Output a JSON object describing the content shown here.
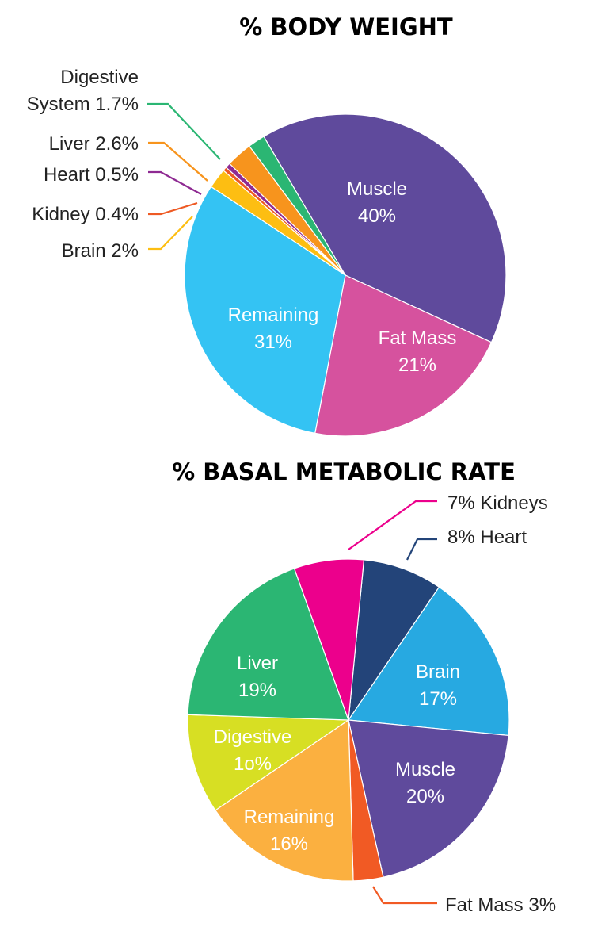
{
  "chart_data": [
    {
      "type": "pie",
      "title": "% BODY WEIGHT",
      "slices": [
        {
          "key": "muscle",
          "label_lines": [
            "Muscle",
            "40%"
          ],
          "value": 40,
          "color": "#5F4A9C",
          "label_style": "inside"
        },
        {
          "key": "fat",
          "label_lines": [
            "Fat Mass",
            "21%"
          ],
          "value": 21,
          "color": "#D6529E",
          "label_style": "inside"
        },
        {
          "key": "remaining",
          "label_lines": [
            "Remaining",
            "31%"
          ],
          "value": 31,
          "color": "#34C3F3",
          "label_style": "inside"
        },
        {
          "key": "brain",
          "label_lines": [
            "Brain 2%"
          ],
          "value": 2,
          "color": "#FDBE12",
          "label_style": "callout"
        },
        {
          "key": "kidney",
          "label_lines": [
            "Kidney 0.4%"
          ],
          "value": 0.4,
          "color": "#EE5A24",
          "label_style": "callout"
        },
        {
          "key": "heart",
          "label_lines": [
            "Heart 0.5%"
          ],
          "value": 0.5,
          "color": "#8E2A92",
          "label_style": "callout"
        },
        {
          "key": "liver",
          "label_lines": [
            "Liver 2.6%"
          ],
          "value": 2.6,
          "color": "#F7941D",
          "label_style": "callout"
        },
        {
          "key": "digestive",
          "label_lines": [
            "Digestive",
            "System 1.7%"
          ],
          "value": 1.7,
          "color": "#2BB673",
          "label_style": "callout"
        }
      ]
    },
    {
      "type": "pie",
      "title": "% BASAL METABOLIC RATE",
      "slices": [
        {
          "key": "heart",
          "label_lines": [
            "8% Heart"
          ],
          "value": 8,
          "color": "#234479",
          "label_style": "callout"
        },
        {
          "key": "brain",
          "label_lines": [
            "Brain",
            "17%"
          ],
          "value": 17,
          "color": "#27A9E1",
          "label_style": "inside"
        },
        {
          "key": "muscle",
          "label_lines": [
            "Muscle",
            "20%"
          ],
          "value": 20,
          "color": "#5F4A9C",
          "label_style": "inside"
        },
        {
          "key": "fat",
          "label_lines": [
            "Fat Mass 3%"
          ],
          "value": 3,
          "color": "#F15A24",
          "label_style": "callout"
        },
        {
          "key": "remaining",
          "label_lines": [
            "Remaining",
            "16%"
          ],
          "value": 16,
          "color": "#FBB040",
          "label_style": "inside"
        },
        {
          "key": "digestive",
          "label_lines": [
            "Digestive",
            "1o%"
          ],
          "value": 10,
          "color": "#D7DF23",
          "label_style": "inside"
        },
        {
          "key": "liver",
          "label_lines": [
            "Liver",
            "19%"
          ],
          "value": 19,
          "color": "#2BB673",
          "label_style": "inside"
        },
        {
          "key": "kidneys",
          "label_lines": [
            "7% Kidneys"
          ],
          "value": 7,
          "color": "#EC008C",
          "label_style": "callout"
        }
      ]
    }
  ]
}
